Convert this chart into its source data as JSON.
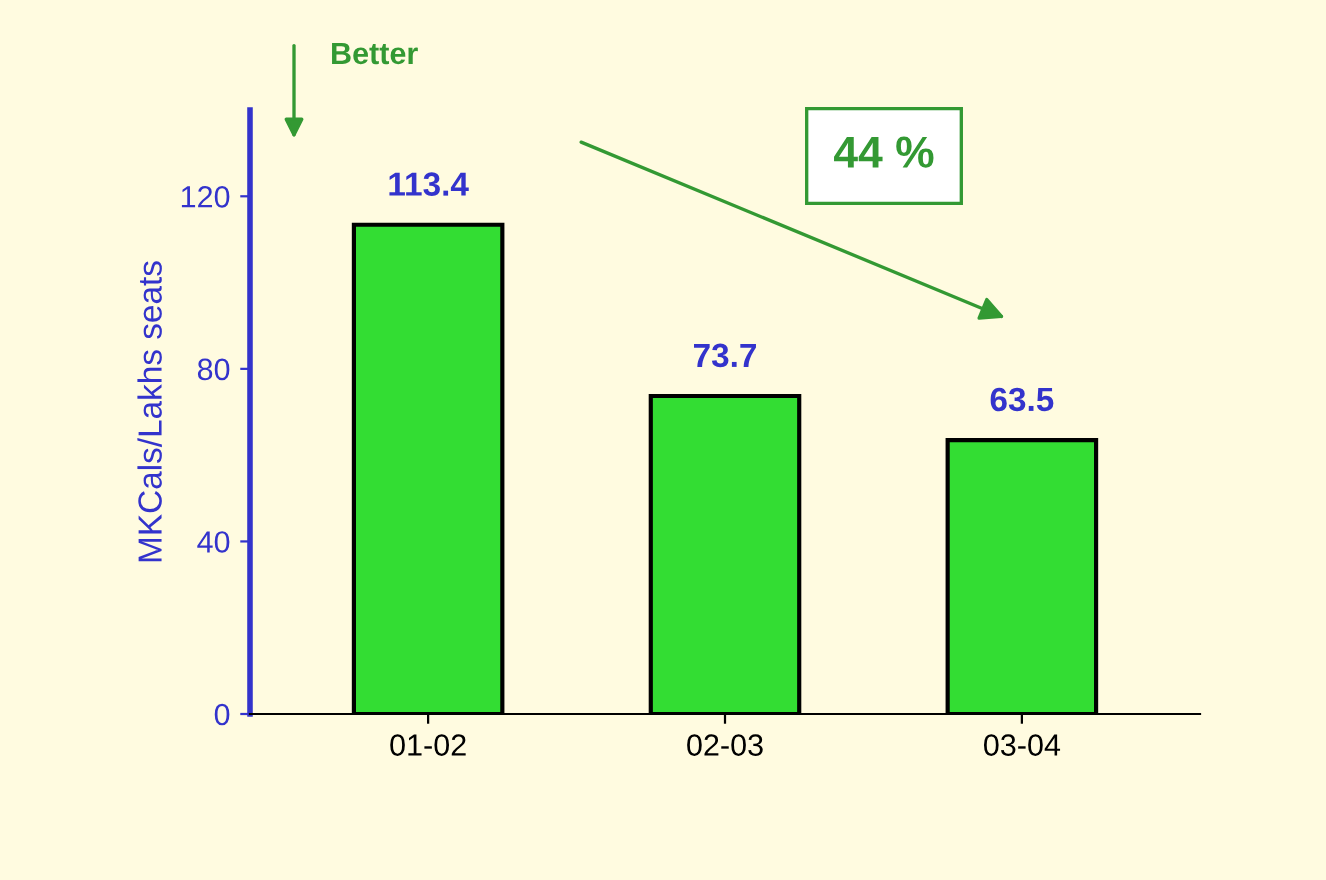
{
  "chart_data": {
    "type": "bar",
    "categories": [
      "01-02",
      "02-03",
      "03-04"
    ],
    "values": [
      113.4,
      73.7,
      63.5
    ],
    "color": "#33dd33",
    "ylabel": "MKCals/Lakhs seats",
    "ylim": [
      0,
      140
    ],
    "yticks": [
      0,
      40,
      80,
      120
    ],
    "data_labels": true,
    "grid": false,
    "legend": false,
    "annotations": [
      "Better",
      "44 %"
    ]
  }
}
